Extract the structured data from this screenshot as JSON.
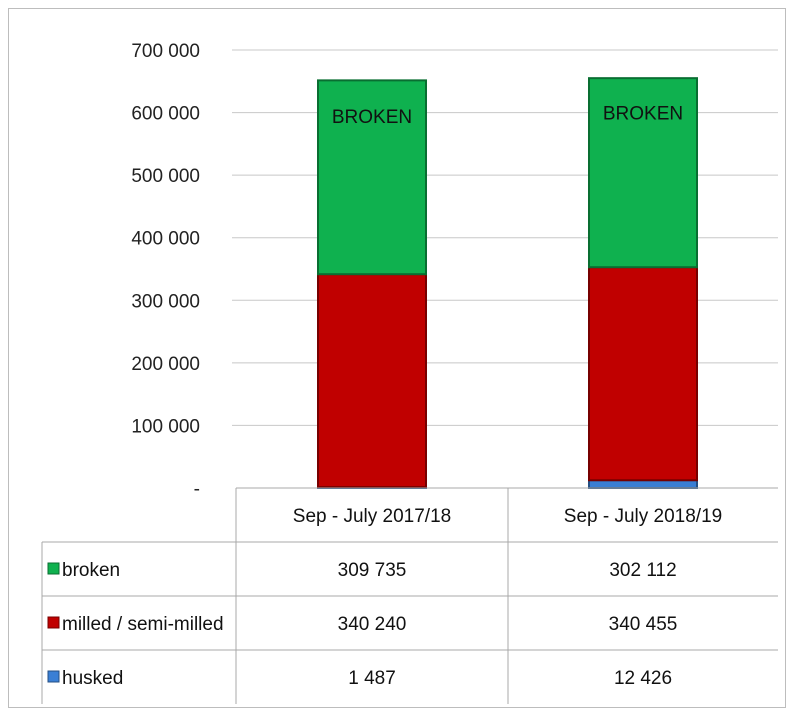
{
  "chart_data": {
    "type": "bar",
    "stacked": true,
    "categories": [
      "Sep - July 2017/18",
      "Sep - July 2018/19"
    ],
    "series": [
      {
        "name": "husked",
        "values": [
          1487,
          12426
        ],
        "color": "#3a7fd5"
      },
      {
        "name": "milled / semi-milled",
        "values": [
          340240,
          340455
        ],
        "color": "#c00000"
      },
      {
        "name": "broken",
        "values": [
          309735,
          302112
        ],
        "color": "#0fb14f"
      }
    ],
    "ylim": [
      0,
      700000
    ],
    "y_ticks": [
      {
        "value": 0,
        "label": "-"
      },
      {
        "value": 100000,
        "label": "100 000"
      },
      {
        "value": 200000,
        "label": "200 000"
      },
      {
        "value": 300000,
        "label": "300 000"
      },
      {
        "value": 400000,
        "label": "400 000"
      },
      {
        "value": 500000,
        "label": "500 000"
      },
      {
        "value": 600000,
        "label": "600 000"
      },
      {
        "value": 700000,
        "label": "700 000"
      }
    ],
    "bar_annotation": "BROKEN",
    "grid": true,
    "legend": "data-table-below",
    "table_rows": [
      {
        "name": "broken",
        "color": "#0fb14f",
        "cells": [
          "309 735",
          "302 112"
        ]
      },
      {
        "name": "milled / semi-milled",
        "color": "#c00000",
        "cells": [
          "340 240",
          "340 455"
        ]
      },
      {
        "name": "husked",
        "color": "#3a7fd5",
        "cells": [
          "1 487",
          "12 426"
        ]
      }
    ]
  }
}
